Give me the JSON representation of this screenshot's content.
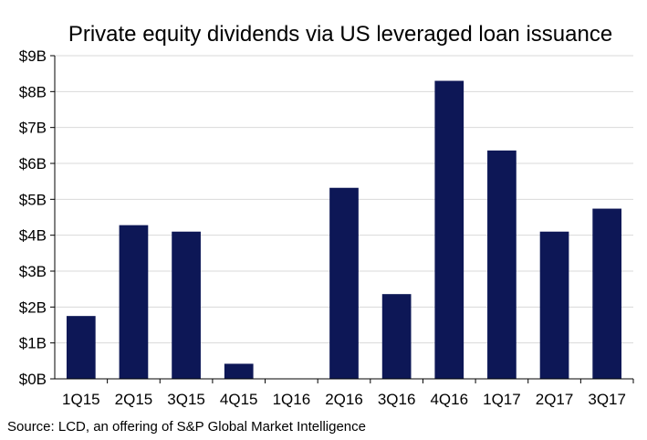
{
  "chart_data": {
    "type": "bar",
    "title": "Private equity dividends via US leveraged loan issuance",
    "xlabel": "",
    "ylabel": "",
    "categories": [
      "1Q15",
      "2Q15",
      "3Q15",
      "4Q15",
      "1Q16",
      "2Q16",
      "3Q16",
      "4Q16",
      "1Q17",
      "2Q17",
      "3Q17"
    ],
    "values": [
      1.75,
      4.28,
      4.1,
      0.42,
      0,
      5.32,
      2.36,
      8.3,
      6.36,
      4.1,
      4.74
    ],
    "ylim": [
      0,
      9
    ],
    "yticks": [
      "$0B",
      "$1B",
      "$2B",
      "$3B",
      "$4B",
      "$5B",
      "$6B",
      "$7B",
      "$8B",
      "$9B"
    ],
    "grid": true,
    "bar_color": "#0d1756",
    "grid_color": "#d9d9d9"
  },
  "source": "Source: LCD, an offering  of S&P Global Market Intelligence"
}
